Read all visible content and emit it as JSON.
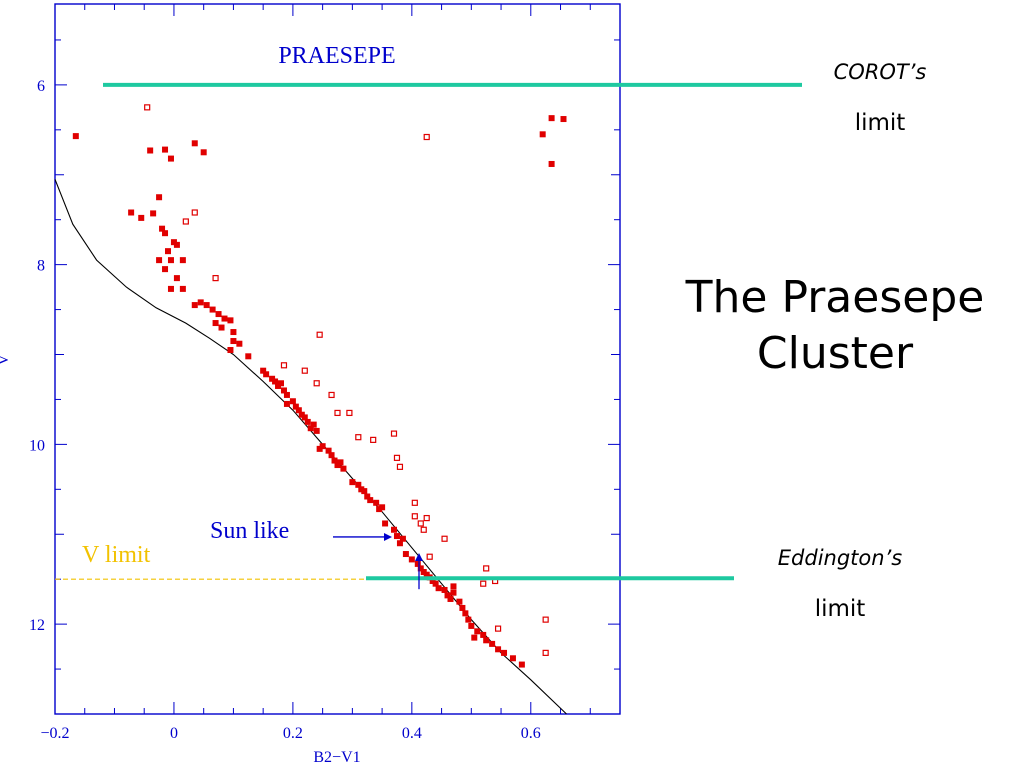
{
  "slide": {
    "title": "The Praesepe Cluster",
    "corot_label": "COROT’s",
    "corot_sub": "limit",
    "eddington_label": "Eddington’s",
    "eddington_sub": "limit"
  },
  "chart_data": {
    "type": "scatter",
    "title": "PRAESEPE",
    "xlabel": "B2−V1",
    "ylabel": "V",
    "xlim": [
      -0.2,
      0.75
    ],
    "ylim": [
      13.0,
      5.1
    ],
    "y_inverted": true,
    "grid": false,
    "x_ticks": [
      -0.2,
      0,
      0.2,
      0.4,
      0.6
    ],
    "x_tick_labels": [
      "−0.2",
      "0",
      "0.2",
      "0.4",
      "0.6"
    ],
    "y_ticks": [
      6,
      8,
      10,
      12
    ],
    "y_tick_labels": [
      "6",
      "8",
      "10",
      "12"
    ],
    "colors": {
      "axis": "#0000cc",
      "points": "#e00000",
      "limit_lines": "#1ec9a0",
      "v_limit": "#f2c200",
      "isochrone": "#000000",
      "annotation": "#0000cc"
    },
    "series": [
      {
        "marker": "filled-square",
        "points": [
          [
            -0.165,
            6.57
          ],
          [
            -0.04,
            6.73
          ],
          [
            -0.015,
            6.72
          ],
          [
            0.035,
            6.65
          ],
          [
            0.05,
            6.75
          ],
          [
            -0.005,
            6.82
          ],
          [
            -0.072,
            7.42
          ],
          [
            -0.055,
            7.48
          ],
          [
            -0.035,
            7.43
          ],
          [
            -0.025,
            7.25
          ],
          [
            -0.02,
            7.6
          ],
          [
            -0.015,
            7.65
          ],
          [
            0.0,
            7.75
          ],
          [
            -0.01,
            7.85
          ],
          [
            -0.005,
            7.95
          ],
          [
            0.005,
            7.78
          ],
          [
            -0.025,
            7.95
          ],
          [
            -0.015,
            8.05
          ],
          [
            0.005,
            8.15
          ],
          [
            0.015,
            7.95
          ],
          [
            -0.005,
            8.27
          ],
          [
            0.015,
            8.27
          ],
          [
            0.035,
            8.45
          ],
          [
            0.045,
            8.42
          ],
          [
            0.055,
            8.45
          ],
          [
            0.065,
            8.5
          ],
          [
            0.075,
            8.55
          ],
          [
            0.085,
            8.6
          ],
          [
            0.07,
            8.65
          ],
          [
            0.08,
            8.7
          ],
          [
            0.095,
            8.62
          ],
          [
            0.1,
            8.75
          ],
          [
            0.1,
            8.85
          ],
          [
            0.095,
            8.95
          ],
          [
            0.11,
            8.88
          ],
          [
            0.125,
            9.02
          ],
          [
            0.15,
            9.18
          ],
          [
            0.155,
            9.22
          ],
          [
            0.165,
            9.27
          ],
          [
            0.17,
            9.3
          ],
          [
            0.175,
            9.35
          ],
          [
            0.18,
            9.32
          ],
          [
            0.185,
            9.4
          ],
          [
            0.19,
            9.45
          ],
          [
            0.19,
            9.55
          ],
          [
            0.2,
            9.52
          ],
          [
            0.205,
            9.58
          ],
          [
            0.21,
            9.62
          ],
          [
            0.215,
            9.67
          ],
          [
            0.22,
            9.7
          ],
          [
            0.225,
            9.75
          ],
          [
            0.23,
            9.82
          ],
          [
            0.235,
            9.78
          ],
          [
            0.24,
            9.85
          ],
          [
            0.245,
            10.05
          ],
          [
            0.25,
            10.02
          ],
          [
            0.26,
            10.07
          ],
          [
            0.265,
            10.12
          ],
          [
            0.27,
            10.18
          ],
          [
            0.275,
            10.23
          ],
          [
            0.28,
            10.2
          ],
          [
            0.285,
            10.27
          ],
          [
            0.3,
            10.42
          ],
          [
            0.31,
            10.45
          ],
          [
            0.315,
            10.5
          ],
          [
            0.32,
            10.52
          ],
          [
            0.325,
            10.58
          ],
          [
            0.33,
            10.62
          ],
          [
            0.34,
            10.65
          ],
          [
            0.345,
            10.72
          ],
          [
            0.35,
            10.7
          ],
          [
            0.355,
            10.88
          ],
          [
            0.37,
            10.95
          ],
          [
            0.375,
            11.02
          ],
          [
            0.38,
            11.1
          ],
          [
            0.385,
            11.05
          ],
          [
            0.39,
            11.22
          ],
          [
            0.4,
            11.28
          ],
          [
            0.41,
            11.33
          ],
          [
            0.415,
            11.38
          ],
          [
            0.42,
            11.42
          ],
          [
            0.425,
            11.45
          ],
          [
            0.43,
            11.48
          ],
          [
            0.435,
            11.52
          ],
          [
            0.44,
            11.55
          ],
          [
            0.445,
            11.6
          ],
          [
            0.455,
            11.62
          ],
          [
            0.46,
            11.68
          ],
          [
            0.465,
            11.72
          ],
          [
            0.47,
            11.65
          ],
          [
            0.47,
            11.58
          ],
          [
            0.48,
            11.75
          ],
          [
            0.485,
            11.82
          ],
          [
            0.49,
            11.88
          ],
          [
            0.495,
            11.95
          ],
          [
            0.5,
            12.02
          ],
          [
            0.51,
            12.08
          ],
          [
            0.52,
            12.12
          ],
          [
            0.525,
            12.18
          ],
          [
            0.535,
            12.22
          ],
          [
            0.545,
            12.28
          ],
          [
            0.555,
            12.32
          ],
          [
            0.57,
            12.38
          ],
          [
            0.585,
            12.45
          ],
          [
            0.505,
            12.15
          ],
          [
            0.62,
            6.55
          ],
          [
            0.635,
            6.37
          ],
          [
            0.655,
            6.38
          ],
          [
            0.635,
            6.88
          ]
        ]
      },
      {
        "marker": "open-square",
        "points": [
          [
            -0.045,
            6.25
          ],
          [
            0.035,
            7.42
          ],
          [
            0.02,
            7.52
          ],
          [
            0.07,
            8.15
          ],
          [
            0.245,
            8.78
          ],
          [
            0.185,
            9.12
          ],
          [
            0.22,
            9.18
          ],
          [
            0.24,
            9.32
          ],
          [
            0.265,
            9.45
          ],
          [
            0.275,
            9.65
          ],
          [
            0.295,
            9.65
          ],
          [
            0.31,
            9.92
          ],
          [
            0.335,
            9.95
          ],
          [
            0.37,
            9.88
          ],
          [
            0.375,
            10.15
          ],
          [
            0.38,
            10.25
          ],
          [
            0.405,
            10.65
          ],
          [
            0.405,
            10.8
          ],
          [
            0.415,
            10.88
          ],
          [
            0.425,
            10.82
          ],
          [
            0.42,
            10.95
          ],
          [
            0.455,
            11.05
          ],
          [
            0.43,
            11.25
          ],
          [
            0.425,
            6.58
          ],
          [
            0.525,
            11.38
          ],
          [
            0.54,
            11.52
          ],
          [
            0.52,
            11.55
          ],
          [
            0.545,
            12.05
          ],
          [
            0.625,
            12.32
          ],
          [
            0.625,
            11.95
          ]
        ]
      }
    ],
    "isochrone": [
      [
        -0.2,
        7.05
      ],
      [
        -0.17,
        7.55
      ],
      [
        -0.13,
        7.95
      ],
      [
        -0.08,
        8.25
      ],
      [
        -0.03,
        8.48
      ],
      [
        0.02,
        8.65
      ],
      [
        0.06,
        8.82
      ],
      [
        0.1,
        9.0
      ],
      [
        0.15,
        9.3
      ],
      [
        0.2,
        9.62
      ],
      [
        0.25,
        10.0
      ],
      [
        0.3,
        10.38
      ],
      [
        0.35,
        10.75
      ],
      [
        0.4,
        11.15
      ],
      [
        0.45,
        11.55
      ],
      [
        0.5,
        11.95
      ],
      [
        0.55,
        12.32
      ],
      [
        0.6,
        12.62
      ],
      [
        0.66,
        13.0
      ]
    ],
    "annotations": {
      "sun_like": {
        "text": "Sun like",
        "x": 0.37,
        "y": 11.03
      },
      "v_limit": {
        "text": "V limit",
        "y": 11.5
      }
    },
    "limit_lines": {
      "corot_v": 6.0,
      "eddington_v": 11.5
    }
  }
}
